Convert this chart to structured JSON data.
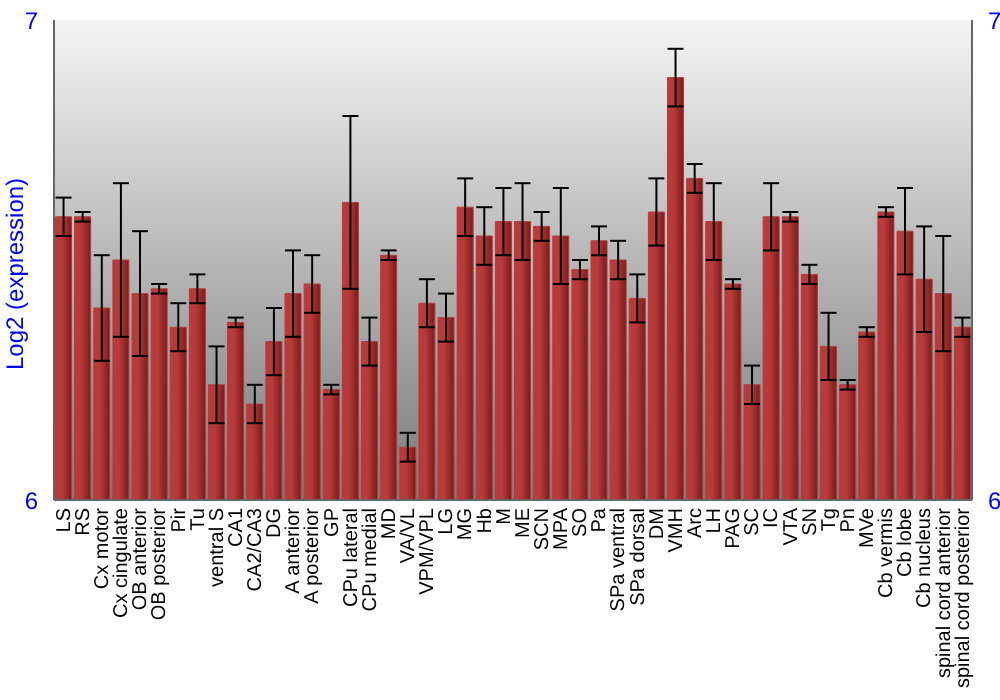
{
  "chart_data": {
    "type": "bar",
    "ylabel": "Log2 (expression)",
    "categories": [
      "LS",
      "RS",
      "Cx motor",
      "Cx cingulate",
      "OB anterior",
      "OB posterior",
      "Pir",
      "Tu",
      "ventral S",
      "CA1",
      "CA2/CA3",
      "DG",
      "A anterior",
      "A posterior",
      "GP",
      "CPu lateral",
      "CPu medial",
      "MD",
      "VA/VL",
      "VPM/VPL",
      "LG",
      "MG",
      "Hb",
      "M",
      "ME",
      "SCN",
      "MPA",
      "SO",
      "Pa",
      "SPa ventral",
      "SPa dorsal",
      "DM",
      "VMH",
      "Arc",
      "LH",
      "PAG",
      "SC",
      "IC",
      "VTA",
      "SN",
      "Tg",
      "Pn",
      "MVe",
      "Cb vermis",
      "Cb lobe",
      "Cb nucleus",
      "spinal cord anterior",
      "spinal cord posterior"
    ],
    "values": [
      6.59,
      6.59,
      6.4,
      6.5,
      6.43,
      6.44,
      6.36,
      6.44,
      6.24,
      6.37,
      6.2,
      6.33,
      6.43,
      6.45,
      6.23,
      6.62,
      6.33,
      6.51,
      6.11,
      6.41,
      6.38,
      6.61,
      6.55,
      6.58,
      6.58,
      6.57,
      6.55,
      6.48,
      6.54,
      6.5,
      6.42,
      6.6,
      6.88,
      6.67,
      6.58,
      6.45,
      6.24,
      6.59,
      6.59,
      6.47,
      6.32,
      6.24,
      6.35,
      6.6,
      6.56,
      6.46,
      6.43,
      6.36
    ],
    "errors": [
      0.04,
      0.01,
      0.11,
      0.16,
      0.13,
      0.01,
      0.05,
      0.03,
      0.08,
      0.01,
      0.04,
      0.07,
      0.09,
      0.06,
      0.01,
      0.18,
      0.05,
      0.01,
      0.03,
      0.05,
      0.05,
      0.06,
      0.06,
      0.07,
      0.08,
      0.03,
      0.1,
      0.02,
      0.03,
      0.04,
      0.05,
      0.07,
      0.06,
      0.03,
      0.08,
      0.01,
      0.04,
      0.07,
      0.01,
      0.02,
      0.07,
      0.01,
      0.01,
      0.01,
      0.09,
      0.11,
      0.12,
      0.02
    ],
    "color": "#b83a3a",
    "ylim": [
      6,
      7
    ],
    "yticks": [
      6,
      7
    ],
    "y2lim": [
      6,
      7
    ],
    "y2ticks": [
      6,
      7
    ],
    "grid": false
  }
}
